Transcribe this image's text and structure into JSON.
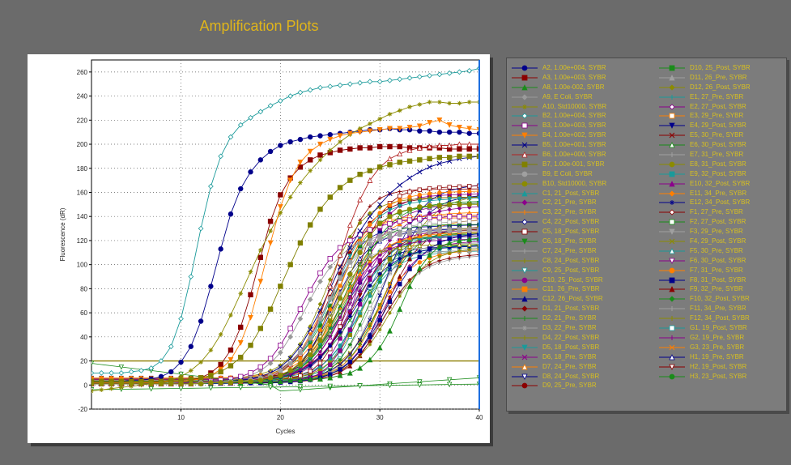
{
  "title": "Amplification Plots",
  "chart_data": {
    "type": "line",
    "title": "",
    "xlabel": "Cycles",
    "ylabel": "Fluorescence (dR)",
    "x_ticks": [
      "10",
      "20",
      "30",
      "40"
    ],
    "y_ticks": [
      "-20",
      "0",
      "20",
      "40",
      "60",
      "80",
      "100",
      "120",
      "140",
      "160",
      "180",
      "200",
      "220",
      "240",
      "260"
    ],
    "xlim": [
      1,
      40
    ],
    "ylim": [
      -20,
      270
    ],
    "grid": true,
    "threshold": 20,
    "selected_cycle": 40,
    "legend_position": "right",
    "series": [
      {
        "name": "A2, 1.00e+004, SYBR",
        "color": "#00008b",
        "marker": "circle",
        "plateau": 208,
        "midpoint": 14.5,
        "slope": 1.6,
        "values": [
          3,
          3,
          3,
          3,
          4,
          4,
          5,
          7,
          11,
          19,
          32,
          53,
          82,
          113,
          142,
          163,
          177,
          187,
          194,
          199,
          202,
          204,
          206,
          207,
          208,
          209,
          210,
          211,
          212,
          212,
          213,
          212,
          212,
          211,
          211,
          210,
          210,
          210,
          209,
          209
        ]
      },
      {
        "name": "A3, 1.00e+003, SYBR",
        "color": "#8b0000",
        "marker": "square",
        "plateau": 197,
        "midpoint": 17.5,
        "slope": 1.6,
        "values": [
          2,
          2,
          2,
          2,
          2,
          2,
          2,
          3,
          3,
          3,
          4,
          6,
          10,
          17,
          29,
          48,
          75,
          106,
          136,
          158,
          172,
          181,
          187,
          191,
          193,
          195,
          196,
          197,
          197,
          198,
          198,
          198,
          197,
          197,
          197,
          197,
          196,
          196,
          196,
          196
        ]
      },
      {
        "name": "A8, 1.00e-002, SYBR",
        "color": "#1a8c1a",
        "marker": "triangle",
        "plateau": 122,
        "midpoint": 33.5,
        "slope": 1.3,
        "values": [
          2,
          2,
          2,
          2,
          2,
          2,
          2,
          2,
          2,
          2,
          2,
          2,
          2,
          2,
          2,
          2,
          3,
          3,
          3,
          3,
          4,
          4,
          5,
          5,
          6,
          8,
          10,
          14,
          21,
          31,
          45,
          63,
          82,
          97,
          108,
          115,
          118,
          120,
          121,
          122
        ]
      },
      {
        "name": "A9, E Coli, SYBR",
        "color": "#9a9a9a",
        "marker": "diamond",
        "plateau": 130,
        "midpoint": 24.5,
        "slope": 1.7,
        "values": [
          1,
          1,
          1,
          1,
          1,
          1,
          1,
          1,
          2,
          2,
          2,
          2,
          3,
          3,
          4,
          6,
          8,
          12,
          18,
          27,
          40,
          55,
          71,
          86,
          98,
          107,
          114,
          118,
          121,
          124,
          126,
          127,
          128,
          129,
          129,
          130,
          130,
          130,
          130,
          130
        ]
      },
      {
        "name": "A10, Std10000, SYBR",
        "color": "#8b8b00",
        "marker": "star",
        "plateau": 235,
        "midpoint": 20.5,
        "slope": 2.1,
        "values": [
          -5,
          -4,
          -3,
          -2,
          -1,
          0,
          1,
          2,
          4,
          7,
          12,
          19,
          29,
          42,
          58,
          76,
          94,
          112,
          128,
          143,
          156,
          168,
          178,
          187,
          195,
          202,
          208,
          213,
          217,
          221,
          225,
          228,
          231,
          233,
          235,
          235,
          234,
          234,
          235,
          235
        ]
      },
      {
        "name": "B2, 1.00e+004, SYBR",
        "color": "#1a9a9a",
        "marker": "diamond-open",
        "plateau": 262,
        "midpoint": 12,
        "slope": 1.8,
        "values": [
          10,
          10,
          10,
          10,
          11,
          12,
          14,
          20,
          32,
          55,
          90,
          130,
          165,
          190,
          206,
          216,
          222,
          227,
          232,
          236,
          240,
          243,
          245,
          247,
          248,
          249,
          250,
          251,
          252,
          252,
          253,
          254,
          255,
          256,
          257,
          258,
          259,
          260,
          261,
          263
        ]
      },
      {
        "name": "B3, 1.00e+003, SYBR",
        "color": "#8b008b",
        "marker": "square-open",
        "plateau": 140,
        "midpoint": 24,
        "slope": 1.8,
        "values": [
          1,
          1,
          1,
          1,
          1,
          1,
          1,
          1,
          1,
          2,
          2,
          2,
          3,
          4,
          5,
          7,
          10,
          15,
          22,
          33,
          47,
          63,
          79,
          93,
          105,
          114,
          120,
          125,
          129,
          132,
          134,
          136,
          137,
          138,
          139,
          139,
          140,
          140,
          140,
          140
        ]
      },
      {
        "name": "B4, 1.00e+002, SYBR",
        "color": "#ff7f00",
        "marker": "tri-down",
        "plateau": 212,
        "midpoint": 18.5,
        "slope": 1.5,
        "values": [
          2,
          2,
          2,
          2,
          2,
          2,
          2,
          2,
          3,
          3,
          4,
          5,
          8,
          13,
          21,
          35,
          56,
          86,
          118,
          148,
          170,
          185,
          194,
          200,
          204,
          207,
          209,
          210,
          211,
          212,
          213,
          213,
          214,
          215,
          218,
          220,
          216,
          214,
          213,
          212
        ]
      },
      {
        "name": "B5, 1.00e+001, SYBR",
        "color": "#00008b",
        "marker": "x",
        "plateau": 190,
        "midpoint": 26,
        "slope": 2.5,
        "values": [
          1,
          1,
          1,
          1,
          1,
          1,
          1,
          1,
          1,
          1,
          1,
          2,
          2,
          2,
          3,
          4,
          5,
          7,
          10,
          15,
          22,
          32,
          46,
          62,
          80,
          98,
          114,
          128,
          140,
          150,
          159,
          166,
          172,
          177,
          181,
          184,
          186,
          188,
          189,
          190
        ]
      },
      {
        "name": "B6, 1.00e+000, SYBR",
        "color": "#b22222",
        "marker": "triangle-open",
        "plateau": 200,
        "midpoint": 25.5,
        "slope": 1.4,
        "values": [
          1,
          1,
          1,
          1,
          1,
          1,
          1,
          1,
          1,
          1,
          1,
          2,
          2,
          2,
          2,
          3,
          4,
          5,
          7,
          11,
          17,
          26,
          39,
          58,
          82,
          108,
          133,
          154,
          170,
          181,
          188,
          192,
          195,
          197,
          198,
          199,
          199,
          200,
          200,
          200
        ]
      },
      {
        "name": "B7, 1.00e-001, SYBR",
        "color": "#808000",
        "marker": "square",
        "plateau": 190,
        "midpoint": 22,
        "slope": 2.0,
        "values": [
          3,
          3,
          3,
          3,
          3,
          3,
          3,
          3,
          4,
          4,
          5,
          6,
          8,
          11,
          16,
          23,
          33,
          47,
          63,
          82,
          100,
          118,
          133,
          146,
          156,
          164,
          170,
          175,
          178,
          181,
          183,
          185,
          186,
          187,
          188,
          189,
          189,
          190,
          190,
          190
        ]
      },
      {
        "name": "B9, E Coli, SYBR",
        "color": "#a0a0a0",
        "marker": "circle",
        "plateau": 128,
        "midpoint": 26,
        "slope": 1.6,
        "values": [
          1,
          1,
          1,
          1,
          1,
          1,
          1,
          1,
          1,
          1,
          1,
          2,
          2,
          2,
          3,
          3,
          4,
          6,
          8,
          12,
          18,
          27,
          39,
          55,
          72,
          89,
          102,
          111,
          117,
          121,
          123,
          125,
          126,
          127,
          127,
          128,
          128,
          128,
          128,
          128
        ]
      },
      {
        "name": "B10, Std10000, SYBR",
        "color": "#8b8b00",
        "marker": "circle",
        "plateau": 150,
        "midpoint": 27,
        "slope": 1.6,
        "values": [
          1,
          1,
          1,
          1,
          1,
          1,
          1,
          1,
          1,
          1,
          1,
          1,
          2,
          2,
          2,
          3,
          3,
          4,
          6,
          8,
          12,
          17,
          25,
          37,
          53,
          72,
          92,
          110,
          124,
          134,
          140,
          144,
          146,
          148,
          149,
          149,
          150,
          150,
          150,
          150
        ]
      }
    ],
    "legend_col1": [
      {
        "label": "A2, 1.00e+004, SYBR",
        "color": "#00008b",
        "marker": "circle"
      },
      {
        "label": "A3, 1.00e+003, SYBR",
        "color": "#8b0000",
        "marker": "square"
      },
      {
        "label": "A8, 1.00e-002, SYBR",
        "color": "#1a8c1a",
        "marker": "triangle"
      },
      {
        "label": "A9, E Coli, SYBR",
        "color": "#9a9a9a",
        "marker": "diamond"
      },
      {
        "label": "A10, Std10000, SYBR",
        "color": "#8b8b00",
        "marker": "star"
      },
      {
        "label": "B2, 1.00e+004, SYBR",
        "color": "#1a9a9a",
        "marker": "diamond-open"
      },
      {
        "label": "B3, 1.00e+003, SYBR",
        "color": "#8b008b",
        "marker": "square-open"
      },
      {
        "label": "B4, 1.00e+002, SYBR",
        "color": "#ff7f00",
        "marker": "tri-down"
      },
      {
        "label": "B5, 1.00e+001, SYBR",
        "color": "#00008b",
        "marker": "x"
      },
      {
        "label": "B6, 1.00e+000, SYBR",
        "color": "#b22222",
        "marker": "triangle-open"
      },
      {
        "label": "B7, 1.00e-001, SYBR",
        "color": "#808000",
        "marker": "square"
      },
      {
        "label": "B9, E Coli, SYBR",
        "color": "#a0a0a0",
        "marker": "circle"
      },
      {
        "label": "B10, Std10000, SYBR",
        "color": "#8b8b00",
        "marker": "circle"
      },
      {
        "label": "C1, 21_Post, SYBR",
        "color": "#1a9a9a",
        "marker": "triangle"
      },
      {
        "label": "C2, 21_Pre, SYBR",
        "color": "#8b008b",
        "marker": "diamond"
      },
      {
        "label": "C3, 22_Pre, SYBR",
        "color": "#ff7f00",
        "marker": "plus"
      },
      {
        "label": "C4, 22_Post, SYBR",
        "color": "#00008b",
        "marker": "diamond-open"
      },
      {
        "label": "C5, 18_Post, SYBR",
        "color": "#8b0000",
        "marker": "square-open"
      },
      {
        "label": "C6, 18_Pre, SYBR",
        "color": "#1a8c1a",
        "marker": "tri-down"
      },
      {
        "label": "C7, 24_Pre, SYBR",
        "color": "#a0a0a0",
        "marker": "plus"
      },
      {
        "label": "C8, 24_Post, SYBR",
        "color": "#8b8b00",
        "marker": "plus"
      },
      {
        "label": "C9, 25_Post, SYBR",
        "color": "#1a9a9a",
        "marker": "tri-down-open"
      },
      {
        "label": "C10, 25_Post, SYBR",
        "color": "#8b008b",
        "marker": "circle"
      },
      {
        "label": "C11, 26_Pre, SYBR",
        "color": "#ff7f00",
        "marker": "square"
      },
      {
        "label": "C12, 26_Post, SYBR",
        "color": "#00008b",
        "marker": "triangle"
      },
      {
        "label": "D1, 21_Post, SYBR",
        "color": "#8b0000",
        "marker": "diamond"
      },
      {
        "label": "D2, 21_Pre, SYBR",
        "color": "#1a8c1a",
        "marker": "plus"
      },
      {
        "label": "D3, 22_Pre, SYBR",
        "color": "#a0a0a0",
        "marker": "star"
      },
      {
        "label": "D4, 22_Post, SYBR",
        "color": "#8b8b00",
        "marker": "plus"
      },
      {
        "label": "D5, 18_Post, SYBR",
        "color": "#1a9a9a",
        "marker": "tri-down"
      },
      {
        "label": "D6, 18_Pre, SYBR",
        "color": "#8b008b",
        "marker": "x"
      },
      {
        "label": "D7, 24_Pre, SYBR",
        "color": "#ff7f00",
        "marker": "triangle-open"
      },
      {
        "label": "D8, 24_Post, SYBR",
        "color": "#00008b",
        "marker": "tri-down-open"
      },
      {
        "label": "D9, 25_Pre, SYBR",
        "color": "#8b0000",
        "marker": "circle"
      }
    ],
    "legend_col2": [
      {
        "label": "D10, 25_Post, SYBR",
        "color": "#1a8c1a",
        "marker": "square"
      },
      {
        "label": "D11, 26_Pre, SYBR",
        "color": "#a0a0a0",
        "marker": "triangle"
      },
      {
        "label": "D12, 26_Post, SYBR",
        "color": "#8b8b00",
        "marker": "diamond"
      },
      {
        "label": "E1, 27_Pre, SYBR",
        "color": "#1a9a9a",
        "marker": "plus"
      },
      {
        "label": "E2, 27_Post, SYBR",
        "color": "#8b008b",
        "marker": "diamond-open"
      },
      {
        "label": "E3, 29_Pre, SYBR",
        "color": "#ff7f00",
        "marker": "square-open"
      },
      {
        "label": "E4, 29_Post, SYBR",
        "color": "#00008b",
        "marker": "tri-down"
      },
      {
        "label": "E5, 30_Pre, SYBR",
        "color": "#8b0000",
        "marker": "x"
      },
      {
        "label": "E6, 30_Post, SYBR",
        "color": "#1a8c1a",
        "marker": "triangle-open"
      },
      {
        "label": "E7, 31_Pre, SYBR",
        "color": "#a0a0a0",
        "marker": "plus"
      },
      {
        "label": "E8, 31_Post, SYBR",
        "color": "#8b8b00",
        "marker": "circle"
      },
      {
        "label": "E9, 32_Post, SYBR",
        "color": "#1a9a9a",
        "marker": "square"
      },
      {
        "label": "E10, 32_Post, SYBR",
        "color": "#8b008b",
        "marker": "triangle"
      },
      {
        "label": "E11, 34_Pre, SYBR",
        "color": "#ff7f00",
        "marker": "diamond"
      },
      {
        "label": "E12, 34_Post, SYBR",
        "color": "#00008b",
        "marker": "star"
      },
      {
        "label": "F1, 27_Pre, SYBR",
        "color": "#8b0000",
        "marker": "diamond-open"
      },
      {
        "label": "F2, 27_Post, SYBR",
        "color": "#1a8c1a",
        "marker": "square-open"
      },
      {
        "label": "F3, 29_Pre, SYBR",
        "color": "#a0a0a0",
        "marker": "tri-down"
      },
      {
        "label": "F4, 29_Post, SYBR",
        "color": "#8b8b00",
        "marker": "x"
      },
      {
        "label": "F5, 30_Pre, SYBR",
        "color": "#1a9a9a",
        "marker": "triangle-open"
      },
      {
        "label": "F6, 30_Post, SYBR",
        "color": "#8b008b",
        "marker": "tri-down-open"
      },
      {
        "label": "F7, 31_Pre, SYBR",
        "color": "#ff7f00",
        "marker": "circle"
      },
      {
        "label": "F8, 31_Post, SYBR",
        "color": "#00008b",
        "marker": "square"
      },
      {
        "label": "F9, 32_Pre, SYBR",
        "color": "#8b0000",
        "marker": "triangle"
      },
      {
        "label": "F10, 32_Post, SYBR",
        "color": "#1a8c1a",
        "marker": "diamond"
      },
      {
        "label": "F11, 34_Pre, SYBR",
        "color": "#a0a0a0",
        "marker": "plus"
      },
      {
        "label": "F12, 34_Post, SYBR",
        "color": "#8b8b00",
        "marker": "plus"
      },
      {
        "label": "G1, 19_Post, SYBR",
        "color": "#1a9a9a",
        "marker": "square-open"
      },
      {
        "label": "G2, 19_Pre, SYBR",
        "color": "#8b008b",
        "marker": "plus"
      },
      {
        "label": "G3, 23_Pre, SYBR",
        "color": "#ff7f00",
        "marker": "x"
      },
      {
        "label": "H1, 19_Pre, SYBR",
        "color": "#00008b",
        "marker": "triangle-open"
      },
      {
        "label": "H2, 19_Post, SYBR",
        "color": "#8b0000",
        "marker": "tri-down-open"
      },
      {
        "label": "H3, 23_Post, SYBR",
        "color": "#1a8c1a",
        "marker": "circle"
      }
    ]
  }
}
